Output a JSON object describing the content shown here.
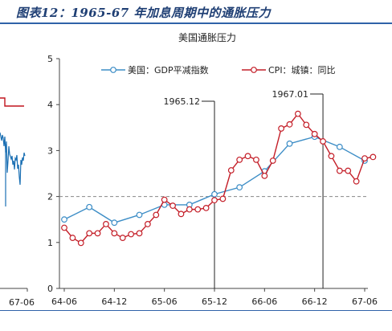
{
  "banner": {
    "title": "图表12：1965-67 年加息周期中的通胀压力"
  },
  "left_panel": {
    "x_tick": "67-06",
    "colors": {
      "red": "#c0141d",
      "blue": "#1a6fb3"
    }
  },
  "chart_data": {
    "type": "line",
    "title": "美国通胀压力",
    "xlabel": "",
    "ylabel": "",
    "x_ticks": [
      "64-06",
      "64-12",
      "65-06",
      "65-12",
      "66-06",
      "66-12",
      "67-06"
    ],
    "ylim": [
      0,
      5
    ],
    "y_ticks": [
      "0",
      "1",
      "2",
      "3",
      "4",
      "5"
    ],
    "grid": false,
    "legend": "top",
    "reference_line": {
      "y": 2,
      "style": "dashed",
      "color": "#888888"
    },
    "annotations": [
      {
        "label": "1965.12",
        "x": "65-12"
      },
      {
        "label": "1967.01",
        "x": "67-01"
      }
    ],
    "series": [
      {
        "name": "美国：GDP平减指数",
        "color": "#3c8dc6",
        "marker": "circle",
        "x": [
          "64-06",
          "64-09",
          "64-12",
          "65-03",
          "65-06",
          "65-09",
          "65-12",
          "66-03",
          "66-06",
          "66-09",
          "66-12",
          "67-03",
          "67-06"
        ],
        "values": [
          1.5,
          1.77,
          1.43,
          1.6,
          1.82,
          1.82,
          2.05,
          2.2,
          2.55,
          3.15,
          3.3,
          3.08,
          2.78
        ]
      },
      {
        "name": "CPI：城镇：同比",
        "color": "#c41e28",
        "marker": "circle",
        "x": [
          "64-06",
          "64-07",
          "64-08",
          "64-09",
          "64-10",
          "64-11",
          "64-12",
          "65-01",
          "65-02",
          "65-03",
          "65-04",
          "65-05",
          "65-06",
          "65-07",
          "65-08",
          "65-09",
          "65-10",
          "65-11",
          "65-12",
          "66-01",
          "66-02",
          "66-03",
          "66-04",
          "66-05",
          "66-06",
          "66-07",
          "66-08",
          "66-09",
          "66-10",
          "66-11",
          "66-12",
          "67-01",
          "67-02",
          "67-03",
          "67-04",
          "67-05",
          "67-06",
          "67-07"
        ],
        "values": [
          1.32,
          1.1,
          0.99,
          1.2,
          1.2,
          1.4,
          1.2,
          1.1,
          1.18,
          1.2,
          1.4,
          1.6,
          1.93,
          1.8,
          1.62,
          1.72,
          1.72,
          1.75,
          1.92,
          1.95,
          2.57,
          2.8,
          2.88,
          2.8,
          2.45,
          2.78,
          3.48,
          3.57,
          3.8,
          3.56,
          3.36,
          3.2,
          2.88,
          2.56,
          2.56,
          2.33,
          2.83,
          2.86
        ]
      }
    ]
  }
}
